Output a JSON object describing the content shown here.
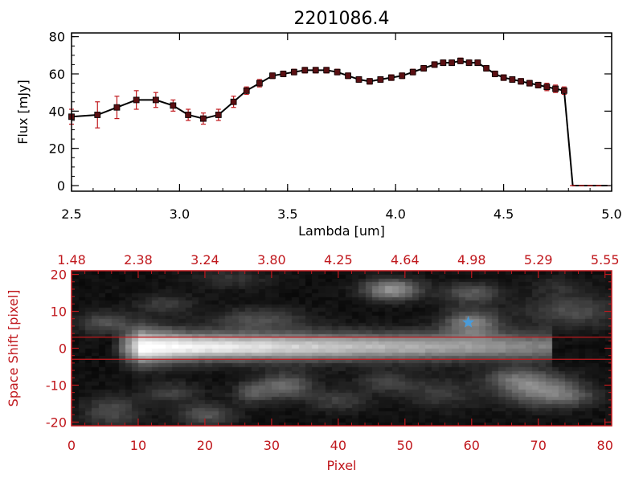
{
  "colors": {
    "frame_top": "#000000",
    "frame_bottom": "#c0181d",
    "line": "#000000",
    "marker": "#5a0f12",
    "error_bar": "#c0181d",
    "aperture_line": "#c0181d",
    "star_marker": "#4a9bd8"
  },
  "chart_data": [
    {
      "type": "line",
      "title": "2201086.4",
      "xlabel": "Lambda [um]",
      "ylabel": "Flux [mJy]",
      "xlim": [
        2.5,
        5.0
      ],
      "ylim": [
        -3,
        82
      ],
      "xticks": [
        2.5,
        3.0,
        3.5,
        4.0,
        4.5,
        5.0
      ],
      "xtick_labels": [
        "2.5",
        "3.0",
        "3.5",
        "4.0",
        "4.5",
        "5.0"
      ],
      "yticks": [
        0,
        20,
        40,
        60,
        80
      ],
      "ytick_labels": [
        "0",
        "20",
        "40",
        "60",
        "80"
      ],
      "x": [
        2.5,
        2.62,
        2.71,
        2.8,
        2.89,
        2.97,
        3.04,
        3.11,
        3.18,
        3.25,
        3.31,
        3.37,
        3.43,
        3.48,
        3.53,
        3.58,
        3.63,
        3.68,
        3.73,
        3.78,
        3.83,
        3.88,
        3.93,
        3.98,
        4.03,
        4.08,
        4.13,
        4.18,
        4.22,
        4.26,
        4.3,
        4.34,
        4.38,
        4.42,
        4.46,
        4.5,
        4.54,
        4.58,
        4.62,
        4.66,
        4.7,
        4.74,
        4.78,
        4.82,
        4.86,
        4.9,
        4.94,
        4.98
      ],
      "y": [
        37,
        38,
        42,
        46,
        46,
        43,
        38,
        36,
        38,
        45,
        51,
        55,
        59,
        60,
        61,
        62,
        62,
        62,
        61,
        59,
        57,
        56,
        57,
        58,
        59,
        61,
        63,
        65,
        66,
        66,
        67,
        66,
        66,
        63,
        60,
        58,
        57,
        56,
        55,
        54,
        53,
        52,
        51,
        0,
        0,
        0,
        0,
        0
      ],
      "errors": [
        4,
        7,
        6,
        5,
        4,
        3,
        3,
        3,
        3,
        3,
        2,
        2,
        1.5,
        1.5,
        1.5,
        1.5,
        1.5,
        1.5,
        1.5,
        1.5,
        1.5,
        1.5,
        1.5,
        1.5,
        1.5,
        1.5,
        1.5,
        1.5,
        1.5,
        1.5,
        1.5,
        1.5,
        1.5,
        1.5,
        1.5,
        1.5,
        1.5,
        1.5,
        1.5,
        1.5,
        2,
        2,
        2,
        0,
        0,
        0,
        0,
        0
      ]
    },
    {
      "type": "heatmap",
      "xlabel": "Pixel",
      "ylabel": "Space Shift [pixel]",
      "xlim": [
        0,
        81
      ],
      "ylim": [
        -21,
        21
      ],
      "xticks": [
        0,
        10,
        20,
        30,
        40,
        50,
        60,
        70,
        80
      ],
      "xtick_labels": [
        "0",
        "10",
        "20",
        "30",
        "40",
        "50",
        "60",
        "70",
        "80"
      ],
      "yticks": [
        -20,
        -10,
        0,
        10,
        20
      ],
      "ytick_labels": [
        "-20",
        "-10",
        "0",
        "10",
        "20"
      ],
      "top_axis_labels": [
        "1.48",
        "2.38",
        "3.24",
        "3.80",
        "4.25",
        "4.64",
        "4.98",
        "5.29",
        "5.55"
      ],
      "aperture_lines": [
        3,
        -3
      ],
      "star_marker": {
        "x": 59.5,
        "y": 7
      },
      "trace": {
        "y_center": 0.5,
        "x_start": 6,
        "x_peak": 10.5,
        "x_end": 72
      },
      "blobs": [
        {
          "x": 48,
          "y": 16,
          "amp": 0.55,
          "sx": 3,
          "sy": 2
        },
        {
          "x": 60,
          "y": 15,
          "amp": 0.3,
          "sx": 3,
          "sy": 2
        },
        {
          "x": 60,
          "y": 7,
          "amp": 0.45,
          "sx": 3,
          "sy": 2.5
        },
        {
          "x": 75,
          "y": 10,
          "amp": 0.25,
          "sx": 5,
          "sy": 3
        },
        {
          "x": 5,
          "y": 7,
          "amp": 0.28,
          "sx": 3,
          "sy": 2
        },
        {
          "x": 14,
          "y": 12,
          "amp": 0.18,
          "sx": 3,
          "sy": 2
        },
        {
          "x": 28,
          "y": 8,
          "amp": 0.25,
          "sx": 5,
          "sy": 2
        },
        {
          "x": 24,
          "y": 19,
          "amp": 0.15,
          "sx": 4,
          "sy": 2
        },
        {
          "x": 6,
          "y": -17,
          "amp": 0.25,
          "sx": 3,
          "sy": 3
        },
        {
          "x": 15,
          "y": -12,
          "amp": 0.2,
          "sx": 3,
          "sy": 2
        },
        {
          "x": 20,
          "y": -18,
          "amp": 0.3,
          "sx": 3,
          "sy": 2
        },
        {
          "x": 27,
          "y": -12,
          "amp": 0.25,
          "sx": 2,
          "sy": 2
        },
        {
          "x": 32,
          "y": -10,
          "amp": 0.35,
          "sx": 3,
          "sy": 2.5
        },
        {
          "x": 40,
          "y": -14,
          "amp": 0.2,
          "sx": 3,
          "sy": 2
        },
        {
          "x": 47,
          "y": -9,
          "amp": 0.2,
          "sx": 3,
          "sy": 2
        },
        {
          "x": 55,
          "y": -12,
          "amp": 0.18,
          "sx": 4,
          "sy": 3
        },
        {
          "x": 66,
          "y": -8,
          "amp": 0.25,
          "sx": 3,
          "sy": 2
        },
        {
          "x": 70,
          "y": -11,
          "amp": 0.45,
          "sx": 4,
          "sy": 3
        },
        {
          "x": 75,
          "y": -13,
          "amp": 0.2,
          "sx": 3,
          "sy": 2
        },
        {
          "x": 73,
          "y": 17,
          "amp": 0.12,
          "sx": 3,
          "sy": 2
        }
      ]
    }
  ]
}
